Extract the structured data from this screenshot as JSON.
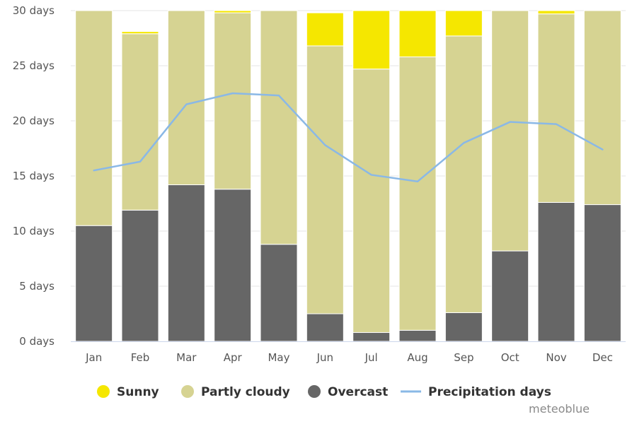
{
  "chart_data": {
    "type": "bar",
    "stacked": true,
    "categories": [
      "Jan",
      "Feb",
      "Mar",
      "Apr",
      "May",
      "Jun",
      "Jul",
      "Aug",
      "Sep",
      "Oct",
      "Nov",
      "Dec"
    ],
    "series": [
      {
        "name": "Overcast",
        "color": "#666666",
        "values": [
          10.5,
          11.9,
          14.2,
          13.8,
          8.8,
          2.5,
          0.8,
          1.0,
          2.6,
          8.2,
          12.6,
          12.4
        ]
      },
      {
        "name": "Partly cloudy",
        "color": "#d6d392",
        "values": [
          19.5,
          16.0,
          15.8,
          16.0,
          21.2,
          24.3,
          23.9,
          24.8,
          25.1,
          21.8,
          17.1,
          17.6
        ]
      },
      {
        "name": "Sunny",
        "color": "#f5e700",
        "values": [
          0.0,
          0.2,
          0.0,
          0.2,
          0.0,
          3.0,
          5.3,
          4.2,
          2.3,
          0.0,
          0.3,
          0.0
        ]
      }
    ],
    "line_series": {
      "name": "Precipitation days",
      "color": "#8ab8e6",
      "values": [
        15.5,
        16.3,
        21.5,
        22.5,
        22.3,
        17.8,
        15.1,
        14.5,
        18.0,
        19.9,
        19.7,
        17.4
      ]
    },
    "ylim": [
      0,
      30
    ],
    "yticks": [
      "0 days",
      "5 days",
      "10 days",
      "15 days",
      "20 days",
      "25 days",
      "30 days"
    ],
    "ytick_values": [
      0,
      5,
      10,
      15,
      20,
      25,
      30
    ],
    "grid": true,
    "legend_position": "bottom",
    "legend": [
      {
        "label": "Sunny",
        "color": "#f5e700",
        "marker": "circle"
      },
      {
        "label": "Partly cloudy",
        "color": "#d6d392",
        "marker": "circle"
      },
      {
        "label": "Overcast",
        "color": "#666666",
        "marker": "circle"
      },
      {
        "label": "Precipitation days",
        "color": "#8ab8e6",
        "marker": "line"
      }
    ]
  },
  "credit": "meteoblue"
}
